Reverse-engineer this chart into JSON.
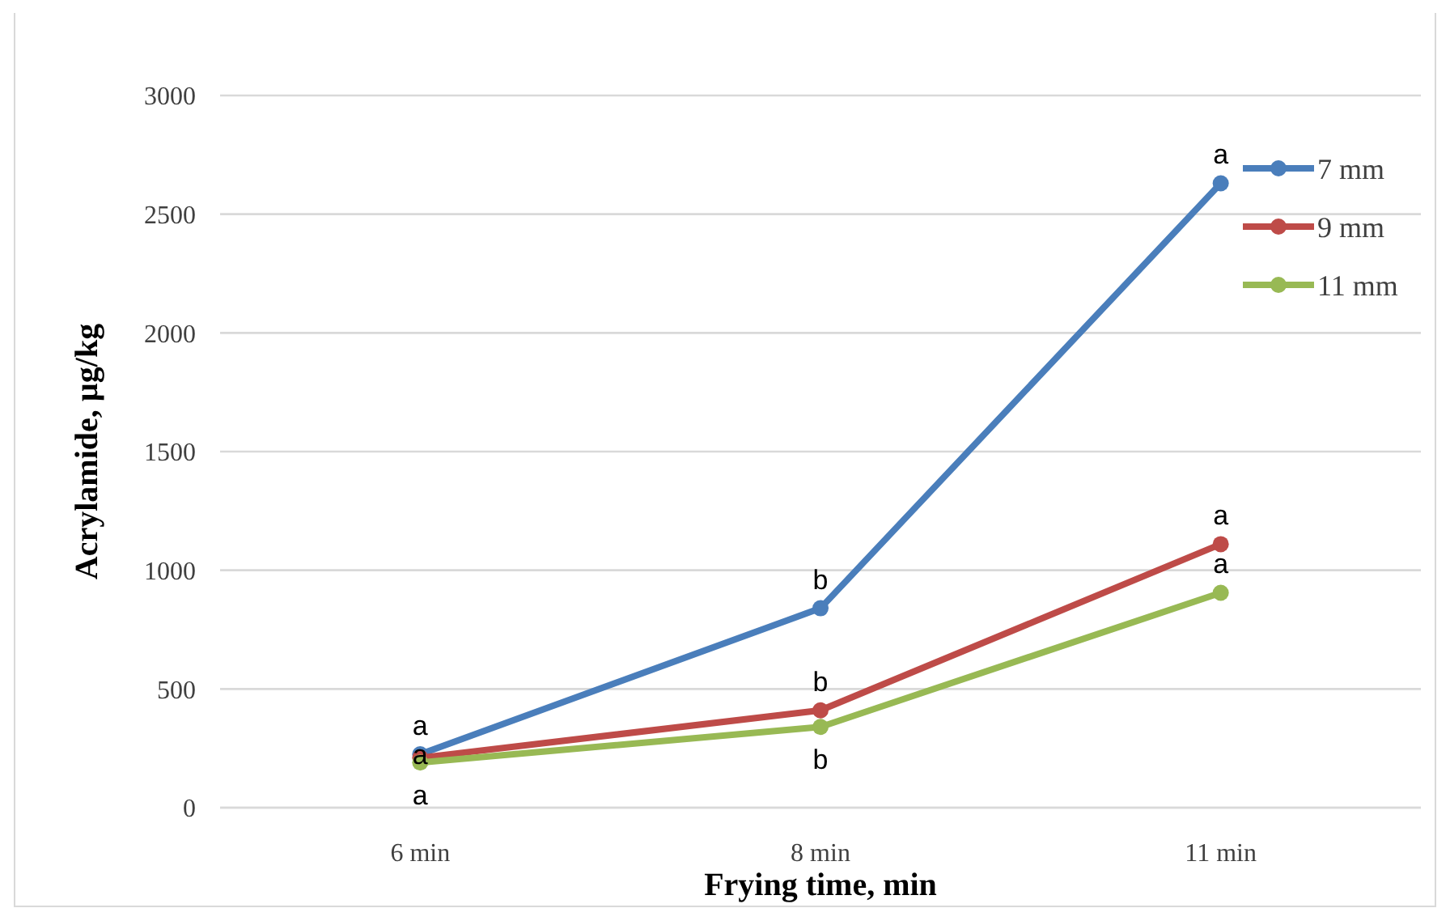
{
  "chart_data": {
    "type": "line",
    "xlabel": "Frying time, min",
    "ylabel": "Acrylamide, µg/kg",
    "categories": [
      "6 min",
      "8 min",
      "11 min"
    ],
    "series": [
      {
        "name": "7 mm",
        "color": "#4a7ebb",
        "values": [
          225,
          840,
          2630
        ]
      },
      {
        "name": "9 mm",
        "color": "#be4b48",
        "values": [
          210,
          410,
          1110
        ]
      },
      {
        "name": "11 mm",
        "color": "#98b954",
        "values": [
          190,
          340,
          905
        ]
      }
    ],
    "ylim": [
      0,
      3000
    ],
    "yticks": [
      0,
      500,
      1000,
      1500,
      2000,
      2500,
      3000
    ],
    "grid": "y",
    "legend": "top right",
    "marker": "circle",
    "line_style": "solid",
    "annotations": [
      {
        "text": "a",
        "x": "6 min",
        "y": 225
      },
      {
        "text": "a",
        "x": "6 min",
        "y": 210
      },
      {
        "text": "a",
        "x": "6 min",
        "y": 190
      },
      {
        "text": "b",
        "x": "8 min",
        "y": 840
      },
      {
        "text": "b",
        "x": "8 min",
        "y": 410
      },
      {
        "text": "b",
        "x": "8 min",
        "y": 340
      },
      {
        "text": "a",
        "x": "11 min",
        "y": 2630
      },
      {
        "text": "a",
        "x": "11 min",
        "y": 1110
      },
      {
        "text": "a",
        "x": "11 min",
        "y": 905
      }
    ]
  }
}
